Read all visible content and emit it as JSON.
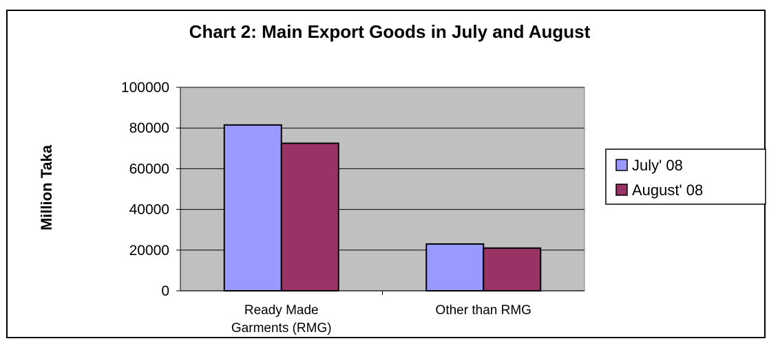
{
  "chart_data": {
    "type": "bar",
    "title": "Chart 2: Main Export Goods in July and August",
    "xlabel": "",
    "ylabel": "Million Taka",
    "ylim": [
      0,
      100000
    ],
    "yticks": [
      0,
      20000,
      40000,
      60000,
      80000,
      100000
    ],
    "categories": [
      [
        "Ready Made",
        "Garments (RMG)"
      ],
      [
        "Other than RMG"
      ]
    ],
    "series": [
      {
        "name": "July' 08",
        "color": "#9999ff",
        "values": [
          81500,
          23000
        ]
      },
      {
        "name": "August' 08",
        "color": "#993366",
        "values": [
          72500,
          21000
        ]
      }
    ],
    "plot_background": "#c0c0c0",
    "grid": true,
    "legend_position": "right"
  }
}
